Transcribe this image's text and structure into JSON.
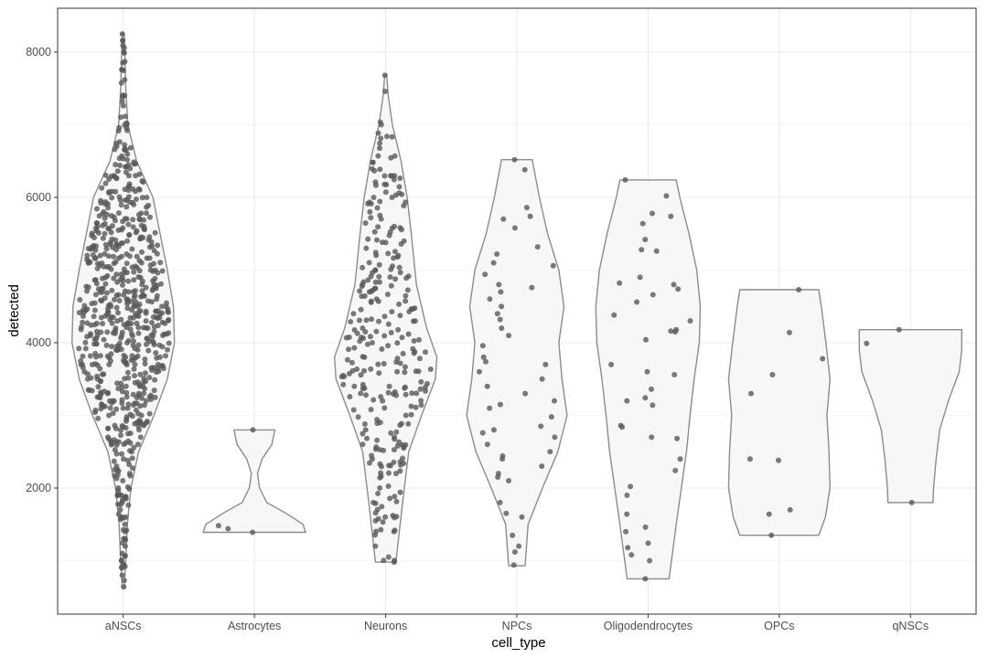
{
  "chart_data": {
    "type": "violin",
    "title": "",
    "xlabel": "cell_type",
    "ylabel": "detected",
    "ylim": [
      0,
      8500
    ],
    "yticks": [
      2000,
      4000,
      6000,
      8000
    ],
    "grid": true,
    "legend": "none",
    "colors": {
      "violin_fill": "#f7f7f7",
      "violin_stroke": "#8c8c8c",
      "point": "#595959",
      "grid": "#ebebeb",
      "panel_border": "#333333"
    },
    "categories": [
      "aNSCs",
      "Astrocytes",
      "Neurons",
      "NPCs",
      "Oligodendrocytes",
      "OPCs",
      "qNSCs"
    ],
    "violins": [
      {
        "category": "aNSCs",
        "min": 620,
        "max": 8250,
        "profile": [
          [
            620,
            0.02
          ],
          [
            1000,
            0.05
          ],
          [
            1500,
            0.08
          ],
          [
            2000,
            0.15
          ],
          [
            2500,
            0.3
          ],
          [
            3000,
            0.6
          ],
          [
            3500,
            0.86
          ],
          [
            4000,
            1.0
          ],
          [
            4500,
            0.98
          ],
          [
            5000,
            0.86
          ],
          [
            5500,
            0.72
          ],
          [
            6000,
            0.58
          ],
          [
            6500,
            0.26
          ],
          [
            7000,
            0.09
          ],
          [
            7500,
            0.05
          ],
          [
            8000,
            0.03
          ],
          [
            8250,
            0.02
          ]
        ]
      },
      {
        "category": "Astrocytes",
        "min": 1390,
        "max": 2800,
        "profile": [
          [
            1390,
            1.0
          ],
          [
            1500,
            0.95
          ],
          [
            1650,
            0.62
          ],
          [
            1800,
            0.24
          ],
          [
            2000,
            0.1
          ],
          [
            2200,
            0.06
          ],
          [
            2400,
            0.15
          ],
          [
            2600,
            0.34
          ],
          [
            2800,
            0.4
          ]
        ]
      },
      {
        "category": "Neurons",
        "min": 980,
        "max": 7680,
        "profile": [
          [
            980,
            0.2
          ],
          [
            1300,
            0.25
          ],
          [
            1800,
            0.33
          ],
          [
            2500,
            0.45
          ],
          [
            3000,
            0.7
          ],
          [
            3500,
            0.97
          ],
          [
            3800,
            1.0
          ],
          [
            4200,
            0.8
          ],
          [
            4800,
            0.6
          ],
          [
            5500,
            0.5
          ],
          [
            6000,
            0.42
          ],
          [
            6500,
            0.3
          ],
          [
            7000,
            0.13
          ],
          [
            7400,
            0.05
          ],
          [
            7680,
            0.02
          ]
        ]
      },
      {
        "category": "NPCs",
        "min": 930,
        "max": 6520,
        "profile": [
          [
            930,
            0.16
          ],
          [
            1500,
            0.22
          ],
          [
            2000,
            0.5
          ],
          [
            2500,
            0.8
          ],
          [
            3000,
            0.98
          ],
          [
            3500,
            0.88
          ],
          [
            4000,
            0.82
          ],
          [
            4500,
            0.92
          ],
          [
            5000,
            0.82
          ],
          [
            5500,
            0.6
          ],
          [
            6000,
            0.44
          ],
          [
            6520,
            0.3
          ]
        ]
      },
      {
        "category": "Oligodendrocytes",
        "min": 750,
        "max": 6240,
        "profile": [
          [
            750,
            0.41
          ],
          [
            1500,
            0.55
          ],
          [
            2500,
            0.75
          ],
          [
            3000,
            0.82
          ],
          [
            3500,
            0.9
          ],
          [
            4000,
            1.0
          ],
          [
            4500,
            1.02
          ],
          [
            5000,
            0.95
          ],
          [
            5500,
            0.8
          ],
          [
            6000,
            0.62
          ],
          [
            6240,
            0.55
          ]
        ]
      },
      {
        "category": "OPCs",
        "min": 1350,
        "max": 4730,
        "profile": [
          [
            1350,
            0.77
          ],
          [
            1600,
            0.9
          ],
          [
            2000,
            0.99
          ],
          [
            2500,
            0.97
          ],
          [
            3000,
            0.93
          ],
          [
            3500,
            0.99
          ],
          [
            4000,
            0.91
          ],
          [
            4500,
            0.82
          ],
          [
            4730,
            0.77
          ]
        ]
      },
      {
        "category": "qNSCs",
        "min": 1800,
        "max": 4180,
        "profile": [
          [
            1800,
            0.44
          ],
          [
            2000,
            0.45
          ],
          [
            2400,
            0.5
          ],
          [
            2800,
            0.57
          ],
          [
            3200,
            0.74
          ],
          [
            3600,
            0.95
          ],
          [
            3900,
            1.0
          ],
          [
            4180,
            1.0
          ]
        ]
      }
    ],
    "points": [
      {
        "category": "aNSCs",
        "y": [
          8250,
          8060,
          8000,
          7760,
          7400,
          7320,
          7260,
          6960,
          6700,
          6520,
          6300,
          6100,
          6000,
          5900,
          5800,
          5700,
          5600,
          5500,
          5400,
          5300,
          5200,
          5100,
          5000,
          4900,
          4800,
          4700,
          4600,
          4500,
          4400,
          4300,
          4200,
          4100,
          4000,
          3900,
          3800,
          3700,
          3600,
          3500,
          3400,
          3300,
          3200,
          3100,
          3000,
          2900,
          2800,
          2700,
          2600,
          2500,
          2400,
          2300,
          2200,
          2100,
          2000,
          1900,
          1800,
          1700,
          1600,
          1500,
          1400,
          1300,
          1200,
          1100,
          1000,
          900,
          800,
          640
        ],
        "density": "high"
      },
      {
        "category": "Astrocytes",
        "y": [
          2800,
          1480,
          1440,
          1390
        ]
      },
      {
        "category": "Neurons",
        "y": [
          7680,
          7000,
          6840,
          6480,
          6300,
          6000,
          5800,
          5600,
          5400,
          5200,
          5000,
          4800,
          4600,
          4400,
          4200,
          4000,
          3800,
          3600,
          3400,
          3200,
          3000,
          2800,
          2600,
          2400,
          2200,
          2000,
          1800,
          1600,
          1400,
          1200,
          1050,
          980
        ],
        "density": "medium"
      },
      {
        "category": "NPCs",
        "y": [
          6520,
          6380,
          5860,
          5740,
          5700,
          5580,
          5320,
          5220,
          5100,
          5060,
          4940,
          4800,
          4760,
          4700,
          4600,
          4500,
          4400,
          4320,
          4200,
          4100,
          3960,
          3800,
          3740,
          3700,
          3600,
          3500,
          3400,
          3300,
          3200,
          3150,
          3100,
          2980,
          2850,
          2800,
          2760,
          2700,
          2600,
          2500,
          2440,
          2400,
          2300,
          2200,
          2150,
          2100,
          1800,
          1650,
          1600,
          1350,
          1200,
          1120,
          940
        ]
      },
      {
        "category": "Oligodendrocytes",
        "y": [
          6240,
          6020,
          5780,
          5740,
          5640,
          5420,
          5280,
          5260,
          4900,
          4820,
          4800,
          4740,
          4660,
          4560,
          4380,
          4300,
          4180,
          4160,
          4150,
          4040,
          3700,
          3600,
          3560,
          3360,
          3240,
          3200,
          3140,
          2860,
          2840,
          2700,
          2680,
          2400,
          2240,
          2020,
          1900,
          1640,
          1460,
          1400,
          1240,
          1180,
          1080,
          1000,
          750
        ]
      },
      {
        "category": "OPCs",
        "y": [
          4730,
          4140,
          3780,
          3560,
          3300,
          2400,
          2380,
          1700,
          1640,
          1350
        ]
      },
      {
        "category": "qNSCs",
        "y": [
          4180,
          3990,
          1800
        ]
      }
    ]
  }
}
